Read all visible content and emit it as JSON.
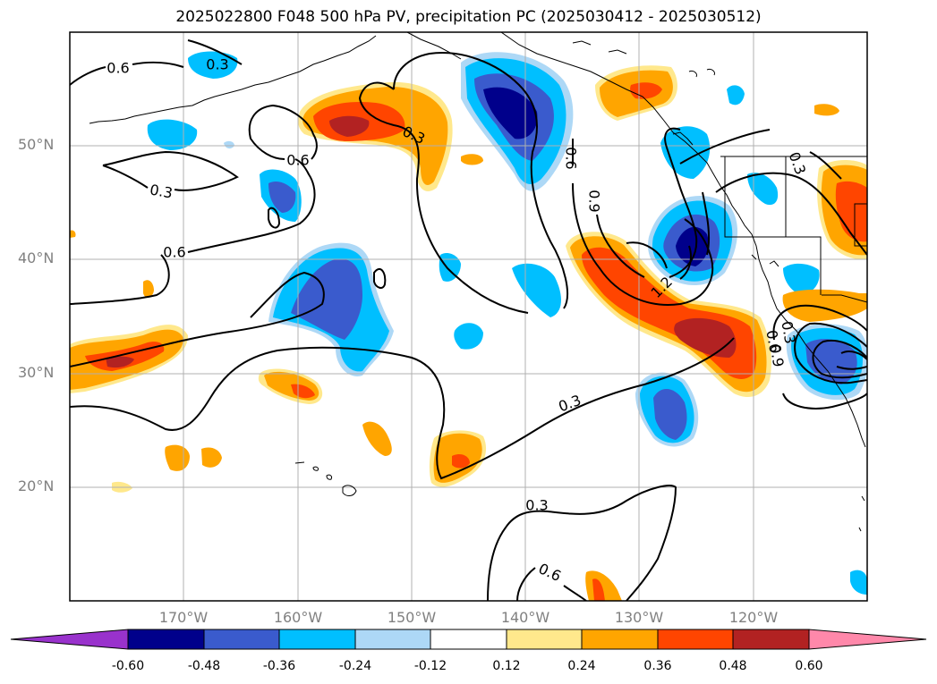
{
  "title": "2025022800 F048 500 hPa PV, precipitation PC (2025030412 - 2025030512)",
  "lat_labels": [
    "50°N",
    "40°N",
    "30°N",
    "20°N"
  ],
  "lon_labels": [
    "170°W",
    "160°W",
    "150°W",
    "140°W",
    "130°W",
    "120°W"
  ],
  "contour_labels": [
    "0.6",
    "0.3",
    "0.3",
    "0.6",
    "0.3",
    "0.6",
    "0.3",
    "0.6",
    "0.9",
    "1.2",
    "0.3",
    "0.3",
    "0.6",
    "0.9",
    "0.6",
    "0.3"
  ],
  "colorbar": {
    "tick_labels": [
      "-0.60",
      "-0.48",
      "-0.36",
      "-0.24",
      "-0.12",
      "0.12",
      "0.24",
      "0.36",
      "0.48",
      "0.60"
    ],
    "colors": [
      "#9932cc",
      "#00008b",
      "#3a5bcd",
      "#00bfff",
      "#add8f6",
      "#ffffff",
      "#ffe88c",
      "#ffa500",
      "#ff4500",
      "#b22222",
      "#ff88aa"
    ]
  },
  "map_colors": {
    "neg_strong": "#00008b",
    "neg_med": "#3a5bcd",
    "neg_light": "#00bfff",
    "neg_faint": "#add8f6",
    "pos_faint": "#ffe88c",
    "pos_light": "#ffa500",
    "pos_med": "#ff4500",
    "pos_strong": "#b22222"
  }
}
